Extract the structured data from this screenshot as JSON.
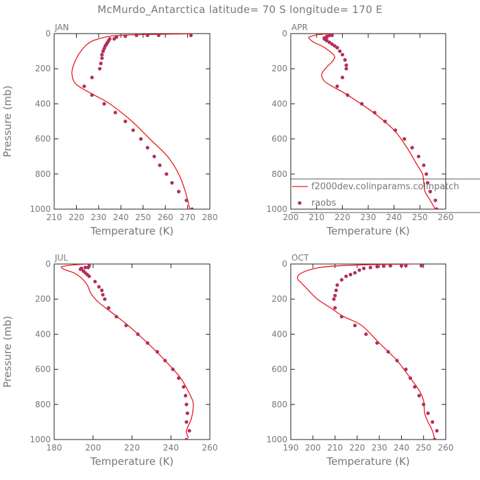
{
  "figure": {
    "title": "McMurdo_Antarctica  latitude= 70 S longitude= 170 E"
  },
  "colors": {
    "model_line": "#e8191c",
    "obs_dot": "#b0305a",
    "axis": "#222222",
    "text": "#777777"
  },
  "legend": {
    "model": "f2000dev.colinparams.colinpatch",
    "obs": "raobs"
  },
  "chart_data": [
    {
      "type": "scatter",
      "title": "JAN",
      "xlabel": "Temperature (K)",
      "ylabel": "Pressure (mb)",
      "xlim": [
        210,
        280
      ],
      "ylim": [
        1000,
        0
      ],
      "xticks": [
        210,
        220,
        230,
        240,
        250,
        260,
        270,
        280
      ],
      "yticks": [
        0,
        200,
        400,
        600,
        800,
        1000
      ],
      "series": [
        {
          "name": "f2000dev.colinparams.colinpatch",
          "kind": "line",
          "points": [
            [
              272,
              1
            ],
            [
              262,
              3
            ],
            [
              252,
              5
            ],
            [
              243,
              8
            ],
            [
              235,
              15
            ],
            [
              230,
              30
            ],
            [
              226,
              50
            ],
            [
              222,
              100
            ],
            [
              219,
              170
            ],
            [
              218,
              230
            ],
            [
              220,
              290
            ],
            [
              228,
              350
            ],
            [
              235,
              400
            ],
            [
              245,
              500
            ],
            [
              253,
              600
            ],
            [
              261,
              700
            ],
            [
              266,
              800
            ],
            [
              269,
              900
            ],
            [
              271,
              1000
            ]
          ]
        },
        {
          "name": "raobs",
          "kind": "scatter",
          "points": [
            [
              271.5,
              10
            ],
            [
              257,
              10
            ],
            [
              252,
              10
            ],
            [
              247,
              10
            ],
            [
              242,
              15
            ],
            [
              238,
              20
            ],
            [
              237,
              30
            ],
            [
              235,
              30
            ],
            [
              234.5,
              40
            ],
            [
              234,
              50
            ],
            [
              233.5,
              60
            ],
            [
              233,
              70
            ],
            [
              232.5,
              85
            ],
            [
              232,
              100
            ],
            [
              231.5,
              120
            ],
            [
              231.5,
              140
            ],
            [
              231,
              170
            ],
            [
              230.5,
              200
            ],
            [
              227,
              250
            ],
            [
              223.5,
              300
            ],
            [
              227,
              350
            ],
            [
              232.5,
              400
            ],
            [
              237.5,
              450
            ],
            [
              242,
              500
            ],
            [
              245.5,
              550
            ],
            [
              249,
              600
            ],
            [
              252,
              650
            ],
            [
              255,
              700
            ],
            [
              257.5,
              750
            ],
            [
              260.5,
              800
            ],
            [
              263,
              850
            ],
            [
              266,
              900
            ],
            [
              269.5,
              950
            ],
            [
              272,
              1000
            ]
          ]
        }
      ]
    },
    {
      "type": "scatter",
      "title": "APR",
      "xlabel": "Temperature (K)",
      "ylabel": "",
      "xlim": [
        200,
        260
      ],
      "ylim": [
        1000,
        0
      ],
      "xticks": [
        200,
        210,
        220,
        230,
        240,
        250,
        260
      ],
      "yticks": [
        0,
        200,
        400,
        600,
        800,
        1000
      ],
      "series": [
        {
          "name": "f2000dev.colinparams.colinpatch",
          "kind": "line",
          "points": [
            [
              216,
              0
            ],
            [
              211,
              5
            ],
            [
              208,
              15
            ],
            [
              207,
              25
            ],
            [
              209,
              50
            ],
            [
              212,
              70
            ],
            [
              215,
              100
            ],
            [
              217,
              130
            ],
            [
              216,
              160
            ],
            [
              214,
              190
            ],
            [
              212,
              230
            ],
            [
              213,
              270
            ],
            [
              216,
              300
            ],
            [
              222,
              350
            ],
            [
              232,
              450
            ],
            [
              240,
              550
            ],
            [
              245,
              650
            ],
            [
              249,
              750
            ],
            [
              251,
              800
            ],
            [
              251.5,
              850
            ],
            [
              252,
              900
            ],
            [
              254,
              950
            ],
            [
              256,
              1000
            ]
          ]
        },
        {
          "name": "raobs",
          "kind": "scatter",
          "points": [
            [
              216,
              10
            ],
            [
              215,
              10
            ],
            [
              214,
              15
            ],
            [
              214,
              20
            ],
            [
              213,
              25
            ],
            [
              213,
              30
            ],
            [
              213.5,
              35
            ],
            [
              214,
              40
            ],
            [
              215,
              50
            ],
            [
              216,
              60
            ],
            [
              217,
              70
            ],
            [
              218,
              80
            ],
            [
              219,
              100
            ],
            [
              220,
              120
            ],
            [
              221,
              150
            ],
            [
              221.5,
              180
            ],
            [
              221.5,
              200
            ],
            [
              220,
              250
            ],
            [
              218,
              300
            ],
            [
              222,
              350
            ],
            [
              227.5,
              400
            ],
            [
              232.5,
              450
            ],
            [
              236.5,
              500
            ],
            [
              240.5,
              550
            ],
            [
              244,
              600
            ],
            [
              247,
              650
            ],
            [
              249.5,
              700
            ],
            [
              251.5,
              750
            ],
            [
              252.5,
              800
            ],
            [
              253,
              850
            ],
            [
              254,
              900
            ],
            [
              256,
              950
            ],
            [
              256.5,
              1000
            ]
          ]
        }
      ]
    },
    {
      "type": "scatter",
      "title": "JUL",
      "xlabel": "Temperature (K)",
      "ylabel": "Pressure (mb)",
      "xlim": [
        180,
        260
      ],
      "ylim": [
        1000,
        0
      ],
      "xticks": [
        180,
        200,
        220,
        240,
        260
      ],
      "yticks": [
        0,
        200,
        400,
        600,
        800,
        1000
      ],
      "series": [
        {
          "name": "f2000dev.colinparams.colinpatch",
          "kind": "line",
          "points": [
            [
              197,
              0
            ],
            [
              190,
              5
            ],
            [
              184,
              15
            ],
            [
              185,
              30
            ],
            [
              190,
              50
            ],
            [
              194,
              80
            ],
            [
              197,
              120
            ],
            [
              199,
              170
            ],
            [
              203,
              220
            ],
            [
              210,
              280
            ],
            [
              218,
              350
            ],
            [
              228,
              450
            ],
            [
              237,
              550
            ],
            [
              245,
              650
            ],
            [
              250,
              750
            ],
            [
              251.5,
              800
            ],
            [
              250.5,
              880
            ],
            [
              248,
              950
            ],
            [
              249,
              990
            ]
          ]
        },
        {
          "name": "raobs",
          "kind": "scatter",
          "points": [
            [
              198,
              10
            ],
            [
              197.5,
              20
            ],
            [
              196,
              20
            ],
            [
              194,
              25
            ],
            [
              193.5,
              30
            ],
            [
              195,
              40
            ],
            [
              196,
              50
            ],
            [
              197,
              60
            ],
            [
              198,
              70
            ],
            [
              201,
              100
            ],
            [
              203,
              130
            ],
            [
              204.5,
              150
            ],
            [
              205,
              175
            ],
            [
              206,
              200
            ],
            [
              208,
              250
            ],
            [
              212,
              300
            ],
            [
              217,
              350
            ],
            [
              223,
              400
            ],
            [
              228,
              450
            ],
            [
              233,
              500
            ],
            [
              237,
              550
            ],
            [
              241,
              600
            ],
            [
              244,
              650
            ],
            [
              246.5,
              700
            ],
            [
              247.5,
              750
            ],
            [
              248,
              800
            ],
            [
              248.5,
              850
            ],
            [
              248,
              900
            ],
            [
              249.5,
              950
            ],
            [
              248,
              1000
            ]
          ]
        }
      ]
    },
    {
      "type": "scatter",
      "title": "OCT",
      "xlabel": "Temperature (K)",
      "ylabel": "",
      "xlim": [
        190,
        260
      ],
      "ylim": [
        1000,
        0
      ],
      "xticks": [
        190,
        200,
        210,
        220,
        230,
        240,
        250,
        260
      ],
      "yticks": [
        0,
        200,
        400,
        600,
        800,
        1000
      ],
      "series": [
        {
          "name": "f2000dev.colinparams.colinpatch",
          "kind": "line",
          "points": [
            [
              246,
              0
            ],
            [
              230,
              3
            ],
            [
              215,
              8
            ],
            [
              203,
              20
            ],
            [
              195,
              50
            ],
            [
              193,
              80
            ],
            [
              195,
              110
            ],
            [
              198,
              150
            ],
            [
              202,
              200
            ],
            [
              208,
              250
            ],
            [
              214,
              300
            ],
            [
              222,
              350
            ],
            [
              230,
              450
            ],
            [
              238,
              550
            ],
            [
              244,
              650
            ],
            [
              248,
              720
            ],
            [
              250,
              780
            ],
            [
              250.5,
              850
            ],
            [
              252,
              900
            ],
            [
              254,
              950
            ],
            [
              255,
              1000
            ]
          ]
        },
        {
          "name": "raobs",
          "kind": "scatter",
          "points": [
            [
              249,
              10
            ],
            [
              242,
              10
            ],
            [
              240,
              10
            ],
            [
              235,
              10
            ],
            [
              232,
              12
            ],
            [
              229,
              15
            ],
            [
              226,
              20
            ],
            [
              223,
              25
            ],
            [
              221,
              35
            ],
            [
              219,
              50
            ],
            [
              217,
              60
            ],
            [
              215,
              70
            ],
            [
              213,
              90
            ],
            [
              211,
              120
            ],
            [
              210.5,
              150
            ],
            [
              210,
              180
            ],
            [
              209.5,
              200
            ],
            [
              210,
              250
            ],
            [
              213,
              300
            ],
            [
              219,
              350
            ],
            [
              224,
              400
            ],
            [
              229,
              450
            ],
            [
              234,
              500
            ],
            [
              238,
              550
            ],
            [
              242,
              600
            ],
            [
              244,
              650
            ],
            [
              246,
              700
            ],
            [
              248,
              750
            ],
            [
              250,
              800
            ],
            [
              252,
              850
            ],
            [
              254,
              900
            ],
            [
              256,
              950
            ],
            [
              255,
              1000
            ]
          ]
        }
      ]
    }
  ]
}
